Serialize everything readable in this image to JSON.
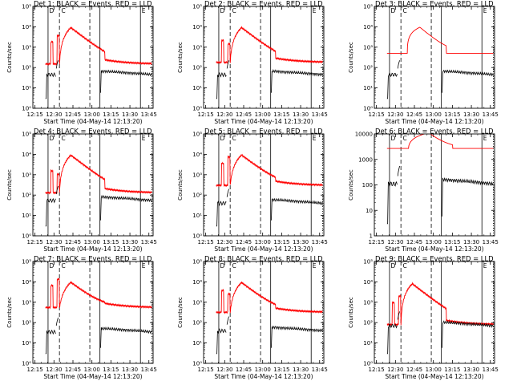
{
  "figure": {
    "background": "#ffffff"
  },
  "chart_data": [
    {
      "type": "line",
      "title": "Det 1: BLACK = Events, RED = LLD",
      "ylabel": "Counts/sec",
      "xlabel": "Start Time (04-May-14 12:13:20)",
      "yscale": "log",
      "ylim": [
        1,
        100000
      ],
      "yticks": [
        "10⁰",
        "10¹",
        "10²",
        "10³",
        "10⁴",
        "10⁵"
      ],
      "xticks": [
        "12:15",
        "12:30",
        "12:45",
        "13:00",
        "13:15",
        "13:30",
        "13:45"
      ],
      "xlim_min": [
        0,
        95
      ],
      "flags": [
        "D",
        "C",
        "E"
      ],
      "series": [
        {
          "name": "Events",
          "color": "#000000"
        },
        {
          "name": "LLD",
          "color": "#ff0000"
        }
      ],
      "red_base": 150,
      "black_base": 45
    },
    {
      "type": "line",
      "title": "Det 2: BLACK = Events, RED = LLD",
      "ylabel": "Counts/sec",
      "xlabel": "Start Time (04-May-14 12:13:20)",
      "yscale": "log",
      "ylim": [
        1,
        100000
      ],
      "yticks": [
        "10⁰",
        "10¹",
        "10²",
        "10³",
        "10⁴",
        "10⁵"
      ],
      "xticks": [
        "12:15",
        "12:30",
        "12:45",
        "13:00",
        "13:15",
        "13:30",
        "13:45"
      ],
      "xlim_min": [
        0,
        95
      ],
      "flags": [
        "D",
        "C",
        "E"
      ],
      "series": [
        {
          "name": "Events",
          "color": "#000000"
        },
        {
          "name": "LLD",
          "color": "#ff0000"
        }
      ],
      "red_base": 180,
      "black_base": 45
    },
    {
      "type": "line",
      "title": "Det 3: BLACK = Events, RED = LLD",
      "ylabel": "Counts/sec",
      "xlabel": "Start Time (04-May-14 12:13:20)",
      "yscale": "log",
      "ylim": [
        1,
        100000
      ],
      "yticks": [
        "10⁰",
        "10¹",
        "10²",
        "10³",
        "10⁴",
        "10⁵"
      ],
      "xticks": [
        "12:15",
        "12:30",
        "12:45",
        "13:00",
        "13:15",
        "13:30",
        "13:45"
      ],
      "xlim_min": [
        0,
        95
      ],
      "flags": [
        "D",
        "C",
        "E"
      ],
      "series": [
        {
          "name": "Events",
          "color": "#000000"
        },
        {
          "name": "LLD",
          "color": "#ff0000"
        }
      ],
      "red_base": 500,
      "black_base": 45
    },
    {
      "type": "line",
      "title": "Det 4: BLACK = Events, RED = LLD",
      "ylabel": "Counts/sec",
      "xlabel": "Start Time (04-May-14 12:13:20)",
      "yscale": "log",
      "ylim": [
        1,
        100000
      ],
      "yticks": [
        "10⁰",
        "10¹",
        "10²",
        "10³",
        "10⁴",
        "10⁵"
      ],
      "xticks": [
        "12:15",
        "12:30",
        "12:45",
        "13:00",
        "13:15",
        "13:30",
        "13:45"
      ],
      "xlim_min": [
        0,
        95
      ],
      "flags": [
        "D",
        "C",
        "E"
      ],
      "series": [
        {
          "name": "Events",
          "color": "#000000"
        },
        {
          "name": "LLD",
          "color": "#ff0000"
        }
      ],
      "red_base": 130,
      "black_base": 55
    },
    {
      "type": "line",
      "title": "Det 5: BLACK = Events, RED = LLD",
      "ylabel": "Counts/sec",
      "xlabel": "Start Time (04-May-14 12:13:20)",
      "yscale": "log",
      "ylim": [
        1,
        100000
      ],
      "yticks": [
        "10⁰",
        "10¹",
        "10²",
        "10³",
        "10⁴",
        "10⁵"
      ],
      "xticks": [
        "12:15",
        "12:30",
        "12:45",
        "13:00",
        "13:15",
        "13:30",
        "13:45"
      ],
      "xlim_min": [
        0,
        95
      ],
      "flags": [
        "D",
        "C",
        "E"
      ],
      "series": [
        {
          "name": "Events",
          "color": "#000000"
        },
        {
          "name": "LLD",
          "color": "#ff0000"
        }
      ],
      "red_base": 300,
      "black_base": 40
    },
    {
      "type": "line",
      "title": "Det 6: BLACK = Events, RED = LLD",
      "ylabel": "Counts/sec",
      "xlabel": "Start Time (04-May-14 12:13:20)",
      "yscale": "log",
      "ylim": [
        1,
        10000
      ],
      "yticks": [
        "1",
        "10",
        "100",
        "1000",
        "10000"
      ],
      "xticks": [
        "12:15",
        "12:30",
        "12:45",
        "13:00",
        "13:15",
        "13:30",
        "13:45"
      ],
      "xlim_min": [
        0,
        95
      ],
      "flags": [
        "D",
        "C",
        "E"
      ],
      "series": [
        {
          "name": "Events",
          "color": "#000000"
        },
        {
          "name": "LLD",
          "color": "#ff0000"
        }
      ],
      "red_base": 2700,
      "black_base": 110
    },
    {
      "type": "line",
      "title": "Det 7: BLACK = Events, RED = LLD",
      "ylabel": "Counts/sec",
      "xlabel": "Start Time (04-May-14 12:13:20)",
      "yscale": "log",
      "ylim": [
        1,
        100000
      ],
      "yticks": [
        "10⁰",
        "10¹",
        "10²",
        "10³",
        "10⁴",
        "10⁵"
      ],
      "xticks": [
        "12:15",
        "12:30",
        "12:45",
        "13:00",
        "13:15",
        "13:30",
        "13:45"
      ],
      "xlim_min": [
        0,
        95
      ],
      "flags": [
        "D",
        "C",
        "E"
      ],
      "series": [
        {
          "name": "Events",
          "color": "#000000"
        },
        {
          "name": "LLD",
          "color": "#ff0000"
        }
      ],
      "red_base": 550,
      "black_base": 35
    },
    {
      "type": "line",
      "title": "Det 8: BLACK = Events, RED = LLD",
      "ylabel": "Counts/sec",
      "xlabel": "Start Time (04-May-14 12:13:20)",
      "yscale": "log",
      "ylim": [
        1,
        100000
      ],
      "yticks": [
        "10⁰",
        "10¹",
        "10²",
        "10³",
        "10⁴",
        "10⁵"
      ],
      "xticks": [
        "12:15",
        "12:30",
        "12:45",
        "13:00",
        "13:15",
        "13:30",
        "13:45"
      ],
      "xlim_min": [
        0,
        95
      ],
      "flags": [
        "D",
        "C",
        "E"
      ],
      "series": [
        {
          "name": "Events",
          "color": "#000000"
        },
        {
          "name": "LLD",
          "color": "#ff0000"
        }
      ],
      "red_base": 320,
      "black_base": 40
    },
    {
      "type": "line",
      "title": "Det 9: BLACK = Events, RED = LLD",
      "ylabel": "Counts/sec",
      "xlabel": "Start Time (04-May-14 12:13:20)",
      "yscale": "log",
      "ylim": [
        1,
        100000
      ],
      "yticks": [
        "10⁰",
        "10¹",
        "10²",
        "10³",
        "10⁴",
        "10⁵"
      ],
      "xticks": [
        "12:15",
        "12:30",
        "12:45",
        "13:00",
        "13:15",
        "13:30",
        "13:45"
      ],
      "xlim_min": [
        0,
        95
      ],
      "flags": [
        "D",
        "C",
        "E"
      ],
      "series": [
        {
          "name": "Events",
          "color": "#000000"
        },
        {
          "name": "LLD",
          "color": "#ff0000"
        }
      ],
      "red_base": 80,
      "black_base": 70
    }
  ]
}
